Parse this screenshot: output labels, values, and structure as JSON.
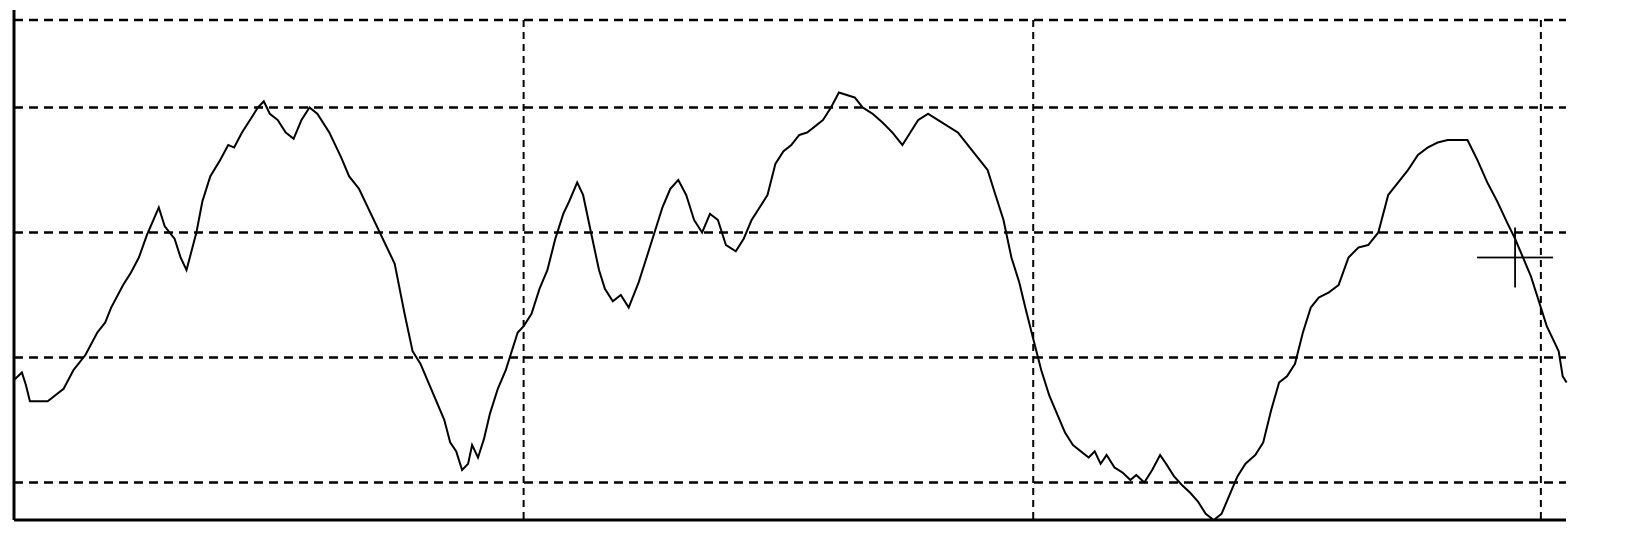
{
  "chart_data": {
    "type": "line",
    "grid": true,
    "xlim": [
      0,
      1640
    ],
    "ylim": [
      0,
      4
    ],
    "y_gridlines": [
      0.3,
      1.3,
      2.3,
      3.3
    ],
    "x_gridlines": [
      514,
      1028,
      1540
    ],
    "cursor": {
      "x": 1514,
      "y": 2.1
    },
    "series": [
      {
        "color": "#000000",
        "points": [
          [
            0,
            1.12
          ],
          [
            8,
            1.18
          ],
          [
            12,
            1.08
          ],
          [
            16,
            0.95
          ],
          [
            34,
            0.95
          ],
          [
            50,
            1.05
          ],
          [
            60,
            1.2
          ],
          [
            72,
            1.32
          ],
          [
            84,
            1.5
          ],
          [
            92,
            1.58
          ],
          [
            98,
            1.7
          ],
          [
            110,
            1.88
          ],
          [
            118,
            1.98
          ],
          [
            126,
            2.1
          ],
          [
            134,
            2.28
          ],
          [
            146,
            2.5
          ],
          [
            152,
            2.35
          ],
          [
            162,
            2.25
          ],
          [
            168,
            2.1
          ],
          [
            174,
            2.0
          ],
          [
            184,
            2.3
          ],
          [
            190,
            2.55
          ],
          [
            198,
            2.75
          ],
          [
            208,
            2.88
          ],
          [
            216,
            3.0
          ],
          [
            222,
            2.98
          ],
          [
            230,
            3.1
          ],
          [
            238,
            3.2
          ],
          [
            246,
            3.3
          ],
          [
            252,
            3.35
          ],
          [
            258,
            3.25
          ],
          [
            266,
            3.2
          ],
          [
            274,
            3.1
          ],
          [
            282,
            3.05
          ],
          [
            290,
            3.2
          ],
          [
            298,
            3.3
          ],
          [
            306,
            3.25
          ],
          [
            318,
            3.1
          ],
          [
            330,
            2.9
          ],
          [
            338,
            2.75
          ],
          [
            348,
            2.65
          ],
          [
            360,
            2.45
          ],
          [
            372,
            2.25
          ],
          [
            384,
            2.05
          ],
          [
            394,
            1.65
          ],
          [
            402,
            1.35
          ],
          [
            410,
            1.25
          ],
          [
            418,
            1.1
          ],
          [
            426,
            0.95
          ],
          [
            434,
            0.8
          ],
          [
            440,
            0.62
          ],
          [
            446,
            0.55
          ],
          [
            452,
            0.4
          ],
          [
            458,
            0.45
          ],
          [
            462,
            0.6
          ],
          [
            468,
            0.5
          ],
          [
            474,
            0.65
          ],
          [
            480,
            0.85
          ],
          [
            488,
            1.05
          ],
          [
            496,
            1.2
          ],
          [
            502,
            1.35
          ],
          [
            508,
            1.5
          ],
          [
            514,
            1.55
          ],
          [
            522,
            1.65
          ],
          [
            530,
            1.85
          ],
          [
            538,
            2.0
          ],
          [
            546,
            2.25
          ],
          [
            554,
            2.45
          ],
          [
            560,
            2.55
          ],
          [
            568,
            2.7
          ],
          [
            574,
            2.6
          ],
          [
            582,
            2.3
          ],
          [
            590,
            2.0
          ],
          [
            596,
            1.85
          ],
          [
            604,
            1.75
          ],
          [
            612,
            1.8
          ],
          [
            620,
            1.7
          ],
          [
            630,
            1.9
          ],
          [
            638,
            2.1
          ],
          [
            646,
            2.3
          ],
          [
            654,
            2.5
          ],
          [
            662,
            2.65
          ],
          [
            670,
            2.72
          ],
          [
            678,
            2.6
          ],
          [
            686,
            2.4
          ],
          [
            694,
            2.3
          ],
          [
            702,
            2.45
          ],
          [
            710,
            2.4
          ],
          [
            718,
            2.2
          ],
          [
            728,
            2.15
          ],
          [
            736,
            2.25
          ],
          [
            744,
            2.4
          ],
          [
            752,
            2.5
          ],
          [
            760,
            2.6
          ],
          [
            768,
            2.85
          ],
          [
            776,
            2.95
          ],
          [
            784,
            3.0
          ],
          [
            792,
            3.08
          ],
          [
            800,
            3.1
          ],
          [
            808,
            3.15
          ],
          [
            816,
            3.2
          ],
          [
            824,
            3.3
          ],
          [
            832,
            3.42
          ],
          [
            840,
            3.4
          ],
          [
            848,
            3.38
          ],
          [
            856,
            3.3
          ],
          [
            866,
            3.25
          ],
          [
            876,
            3.18
          ],
          [
            886,
            3.1
          ],
          [
            896,
            3.0
          ],
          [
            904,
            3.1
          ],
          [
            912,
            3.2
          ],
          [
            922,
            3.25
          ],
          [
            932,
            3.2
          ],
          [
            942,
            3.15
          ],
          [
            952,
            3.1
          ],
          [
            962,
            3.0
          ],
          [
            972,
            2.9
          ],
          [
            982,
            2.8
          ],
          [
            990,
            2.6
          ],
          [
            998,
            2.4
          ],
          [
            1006,
            2.1
          ],
          [
            1014,
            1.9
          ],
          [
            1020,
            1.7
          ],
          [
            1028,
            1.45
          ],
          [
            1036,
            1.2
          ],
          [
            1044,
            1.0
          ],
          [
            1052,
            0.85
          ],
          [
            1060,
            0.7
          ],
          [
            1068,
            0.6
          ],
          [
            1076,
            0.55
          ],
          [
            1084,
            0.5
          ],
          [
            1090,
            0.55
          ],
          [
            1096,
            0.45
          ],
          [
            1102,
            0.52
          ],
          [
            1110,
            0.42
          ],
          [
            1118,
            0.38
          ],
          [
            1126,
            0.32
          ],
          [
            1132,
            0.36
          ],
          [
            1140,
            0.3
          ],
          [
            1148,
            0.4
          ],
          [
            1156,
            0.52
          ],
          [
            1162,
            0.45
          ],
          [
            1170,
            0.35
          ],
          [
            1178,
            0.28
          ],
          [
            1186,
            0.22
          ],
          [
            1194,
            0.15
          ],
          [
            1202,
            0.05
          ],
          [
            1210,
            0.0
          ],
          [
            1218,
            0.05
          ],
          [
            1226,
            0.2
          ],
          [
            1234,
            0.35
          ],
          [
            1242,
            0.45
          ],
          [
            1252,
            0.52
          ],
          [
            1260,
            0.62
          ],
          [
            1268,
            0.88
          ],
          [
            1276,
            1.1
          ],
          [
            1284,
            1.15
          ],
          [
            1292,
            1.25
          ],
          [
            1300,
            1.5
          ],
          [
            1308,
            1.7
          ],
          [
            1316,
            1.78
          ],
          [
            1326,
            1.82
          ],
          [
            1336,
            1.88
          ],
          [
            1346,
            2.1
          ],
          [
            1356,
            2.18
          ],
          [
            1366,
            2.2
          ],
          [
            1376,
            2.3
          ],
          [
            1386,
            2.6
          ],
          [
            1396,
            2.7
          ],
          [
            1406,
            2.8
          ],
          [
            1416,
            2.92
          ],
          [
            1426,
            2.98
          ],
          [
            1436,
            3.02
          ],
          [
            1446,
            3.04
          ],
          [
            1456,
            3.04
          ],
          [
            1466,
            3.04
          ],
          [
            1476,
            2.88
          ],
          [
            1486,
            2.7
          ],
          [
            1496,
            2.55
          ],
          [
            1506,
            2.38
          ],
          [
            1514,
            2.25
          ],
          [
            1522,
            2.1
          ],
          [
            1530,
            1.95
          ],
          [
            1538,
            1.75
          ],
          [
            1546,
            1.55
          ],
          [
            1552,
            1.45
          ],
          [
            1558,
            1.35
          ],
          [
            1562,
            1.15
          ],
          [
            1566,
            1.1
          ]
        ]
      }
    ]
  }
}
